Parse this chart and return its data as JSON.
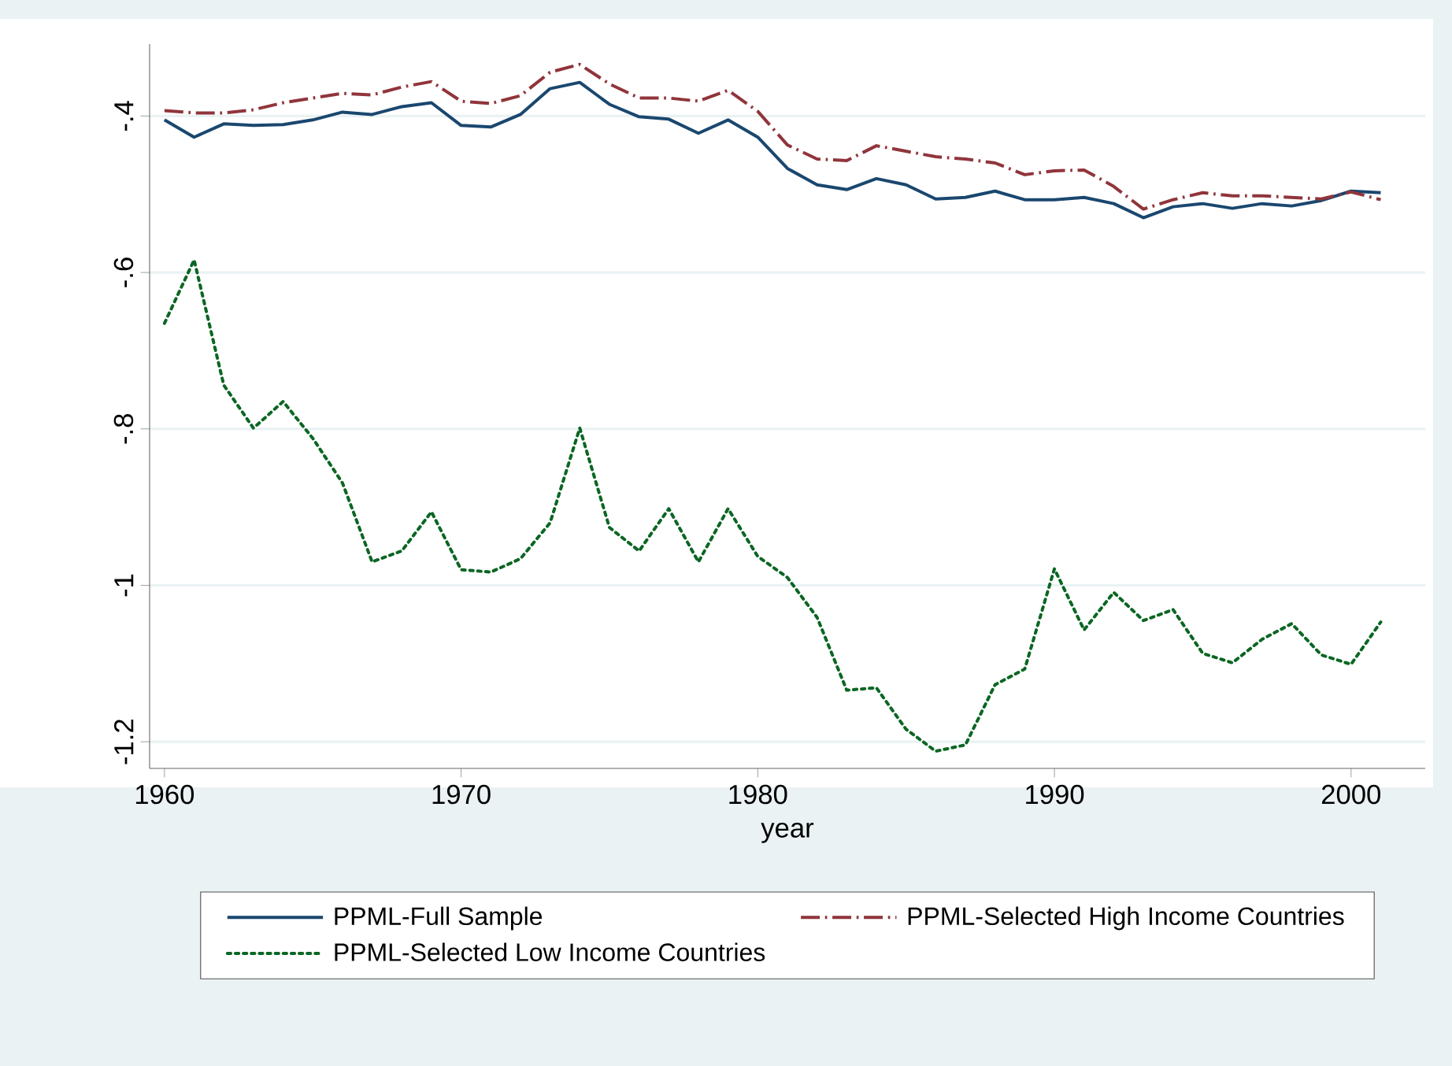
{
  "chart_data": {
    "type": "line",
    "xlabel": "year",
    "x": [
      1960,
      1961,
      1962,
      1963,
      1964,
      1965,
      1966,
      1967,
      1968,
      1969,
      1970,
      1971,
      1972,
      1973,
      1974,
      1975,
      1976,
      1977,
      1978,
      1979,
      1980,
      1981,
      1982,
      1983,
      1984,
      1985,
      1986,
      1987,
      1988,
      1989,
      1990,
      1991,
      1992,
      1993,
      1994,
      1995,
      1996,
      1997,
      1998,
      1999,
      2000,
      2001
    ],
    "series": [
      {
        "name": "PPML-Full Sample",
        "color": "#1a476f",
        "line_style": "solid",
        "values": [
          -0.405,
          -0.427,
          -0.41,
          -0.412,
          -0.411,
          -0.405,
          -0.395,
          -0.398,
          -0.388,
          -0.383,
          -0.412,
          -0.414,
          -0.398,
          -0.365,
          -0.357,
          -0.385,
          -0.401,
          -0.404,
          -0.422,
          -0.405,
          -0.427,
          -0.467,
          -0.488,
          -0.494,
          -0.48,
          -0.488,
          -0.506,
          -0.504,
          -0.496,
          -0.507,
          -0.507,
          -0.504,
          -0.512,
          -0.53,
          -0.516,
          -0.512,
          -0.518,
          -0.512,
          -0.515,
          -0.508,
          -0.496,
          -0.498
        ]
      },
      {
        "name": "PPML-Selected High Income Countries",
        "color": "#90353b",
        "line_style": "dashed",
        "values": [
          -0.393,
          -0.396,
          -0.396,
          -0.392,
          -0.383,
          -0.377,
          -0.371,
          -0.373,
          -0.363,
          -0.356,
          -0.381,
          -0.384,
          -0.374,
          -0.344,
          -0.334,
          -0.359,
          -0.377,
          -0.377,
          -0.381,
          -0.367,
          -0.394,
          -0.437,
          -0.455,
          -0.457,
          -0.438,
          -0.445,
          -0.452,
          -0.455,
          -0.46,
          -0.475,
          -0.47,
          -0.469,
          -0.49,
          -0.519,
          -0.507,
          -0.498,
          -0.502,
          -0.502,
          -0.504,
          -0.506,
          -0.497,
          -0.507
        ]
      },
      {
        "name": "PPML-Selected Low Income Countries",
        "color": "#0b6623",
        "line_style": "dotted",
        "values": [
          -0.665,
          -0.584,
          -0.744,
          -0.799,
          -0.765,
          -0.812,
          -0.869,
          -0.97,
          -0.956,
          -0.906,
          -0.98,
          -0.983,
          -0.966,
          -0.92,
          -0.799,
          -0.926,
          -0.956,
          -0.902,
          -0.97,
          -0.902,
          -0.963,
          -0.99,
          -1.041,
          -1.134,
          -1.131,
          -1.184,
          -1.212,
          -1.204,
          -1.127,
          -1.107,
          -0.979,
          -1.057,
          -1.009,
          -1.045,
          -1.031,
          -1.087,
          -1.099,
          -1.069,
          -1.049,
          -1.089,
          -1.101,
          -1.047
        ]
      }
    ],
    "xlim": [
      1959.5,
      2002.5
    ],
    "xticks": [
      1960,
      1970,
      1980,
      1990,
      2000
    ],
    "ylim": [
      -1.234,
      -0.308
    ],
    "yticks": [
      -1.2,
      -1,
      {
        "value": -0.8,
        "label": "-.8"
      },
      {
        "value": -0.6,
        "label": "-.6"
      },
      {
        "value": -0.4,
        "label": "-.4"
      }
    ],
    "grid": "y",
    "legend": "bottom",
    "marker": "none"
  }
}
